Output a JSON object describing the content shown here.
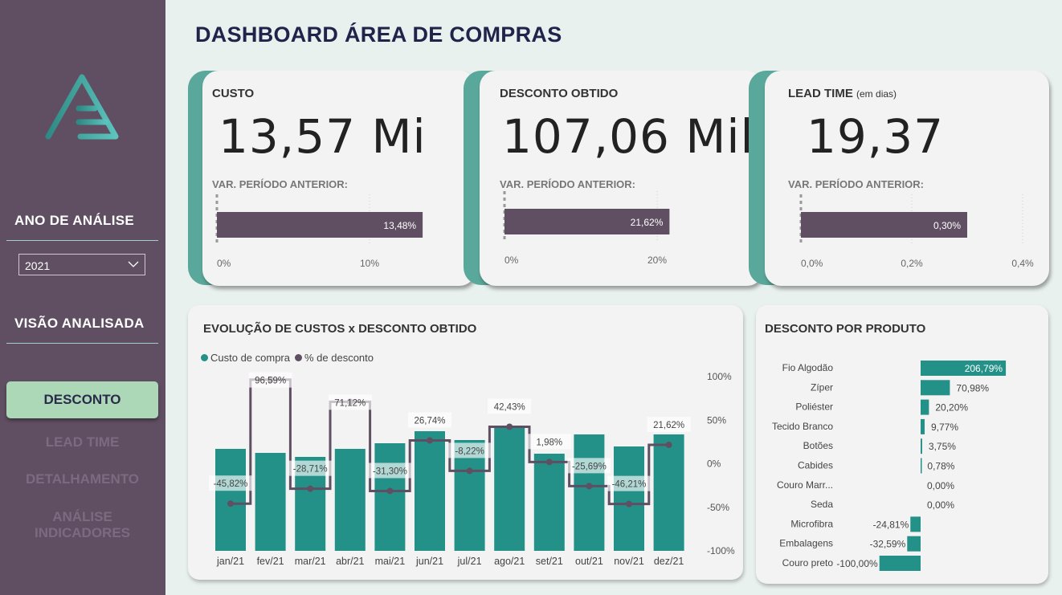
{
  "sidebar": {
    "year_heading": "ANO DE ANÁLISE",
    "year_value": "2021",
    "view_heading": "VISÃO ANALISADA",
    "nav": [
      {
        "label": "DESCONTO",
        "active": true
      },
      {
        "label": "LEAD TIME"
      },
      {
        "label": "DETALHAMENTO"
      },
      {
        "label": "ANÁLISE INDICADORES"
      }
    ]
  },
  "header": {
    "title": "DASHBOARD ÁREA DE COMPRAS"
  },
  "kpis": [
    {
      "label": "CUSTO",
      "sub": "",
      "value": "13,57 Mi",
      "var_label": "VAR. PERÍODO ANTERIOR:",
      "var": 13.48,
      "var_text": "13,48%",
      "ticks": [
        "0%",
        "10%"
      ],
      "tick_values": [
        0,
        10
      ],
      "max": 14.5
    },
    {
      "label": "DESCONTO OBTIDO",
      "sub": "",
      "value": "107,06 Mil",
      "var_label": "VAR. PERÍODO ANTERIOR:",
      "var": 21.62,
      "var_text": "21,62%",
      "ticks": [
        "0%",
        "20%"
      ],
      "tick_values": [
        0,
        20
      ],
      "max": 22
    },
    {
      "label": "LEAD TIME",
      "sub": "(em dias)",
      "value": "19,37",
      "var_label": "VAR. PERÍODO ANTERIOR:",
      "var": 0.3,
      "var_text": "0,30%",
      "ticks": [
        "0,0%",
        "0,2%",
        "0,4%"
      ],
      "tick_values": [
        0,
        0.2,
        0.4
      ],
      "max": 0.4
    }
  ],
  "colors": {
    "sidebar": "#604f63",
    "accent": "#5aa89b",
    "bar": "#249189",
    "line": "#5f4f63",
    "kpi_bar": "#604f63"
  },
  "chart_data": [
    {
      "type": "bar+line",
      "title": "EVOLUÇÃO DE CUSTOS x DESCONTO OBTIDO",
      "categories": [
        "jan/21",
        "fev/21",
        "mar/21",
        "abr/21",
        "mai/21",
        "jun/21",
        "jul/21",
        "ago/21",
        "set/21",
        "out/21",
        "nov/21",
        "dez/21"
      ],
      "series": [
        {
          "name": "Custo de compra",
          "type": "bar",
          "values_relative": [
            127,
            122,
            117,
            127,
            134,
            149,
            138,
            154,
            121,
            145,
            130,
            145
          ]
        },
        {
          "name": "% de desconto",
          "type": "step-line",
          "values": [
            -45.82,
            96.59,
            -28.71,
            71.12,
            -31.3,
            26.74,
            -8.22,
            42.43,
            1.98,
            -25.69,
            -46.21,
            21.62
          ],
          "labels": [
            "-45,82%",
            "96,59%",
            "-28,71%",
            "71,12%",
            "-31,30%",
            "26,74%",
            "-8,22%",
            "42,43%",
            "1,98%",
            "-25,69%",
            "-46,21%",
            "21,62%"
          ]
        }
      ],
      "y2_ticks": [
        "100%",
        "50%",
        "0%",
        "-50%",
        "-100%"
      ],
      "y2_tick_values": [
        100,
        50,
        0,
        -50,
        -100
      ],
      "y2lim": [
        -100,
        100
      ],
      "legend": "top-left"
    },
    {
      "type": "bar-horizontal",
      "title": "DESCONTO POR PRODUTO",
      "categories": [
        "Fio Algodão",
        "Zíper",
        "Poliéster",
        "Tecido Branco",
        "Botões",
        "Cabides",
        "Couro Marr...",
        "Seda",
        "Microfibra",
        "Embalagens",
        "Couro preto"
      ],
      "values": [
        206.79,
        70.98,
        20.2,
        9.77,
        3.75,
        0.78,
        0.0,
        0.0,
        -24.81,
        -32.59,
        -100.0
      ],
      "labels": [
        "206,79%",
        "70,98%",
        "20,20%",
        "9,77%",
        "3,75%",
        "0,78%",
        "0,00%",
        "0,00%",
        "-24,81%",
        "-32,59%",
        "-100,00%"
      ]
    }
  ]
}
